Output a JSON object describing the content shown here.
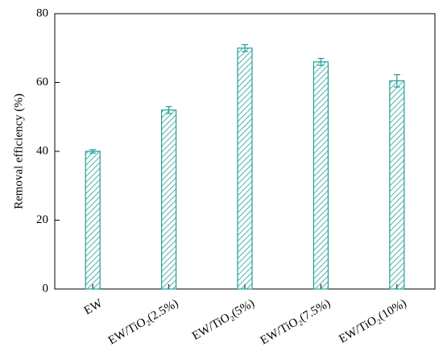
{
  "chart_data": {
    "type": "bar",
    "ylabel": "Removal efficiency (%)",
    "categories": [
      "EW",
      "EW/TiO₂(2.5%)",
      "EW/TiO₂(5%)",
      "EW/TiO₂(7.5%)",
      "EW/TiO₂(10%)"
    ],
    "values": [
      40,
      52,
      70,
      66,
      60.5
    ],
    "errors": [
      0.5,
      1,
      1,
      1,
      1.8
    ],
    "color": "#1f9e96",
    "ylim": [
      0,
      80
    ],
    "yticks": [
      0,
      20,
      40,
      60,
      80
    ],
    "grid": false
  }
}
